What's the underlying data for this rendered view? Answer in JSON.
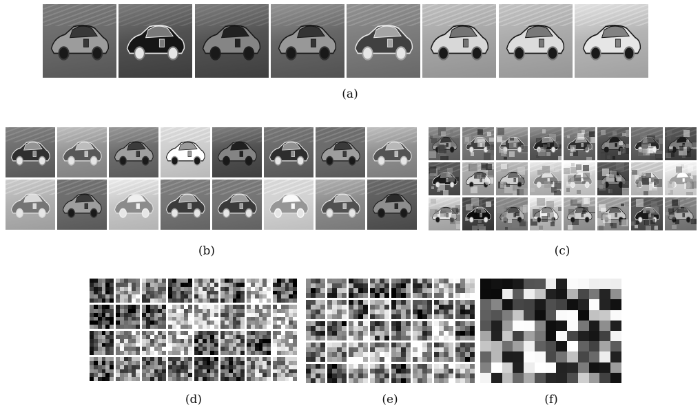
{
  "figure": {
    "captions": {
      "a": "(a)",
      "b": "(b)",
      "c": "(c)",
      "d": "(d)",
      "e": "(e)",
      "f": "(f)"
    }
  }
}
